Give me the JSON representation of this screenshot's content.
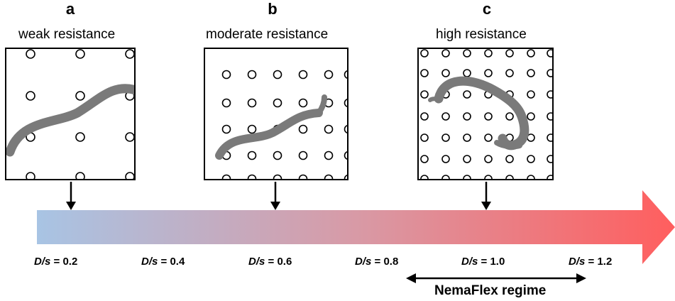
{
  "panels": [
    {
      "letter": "a",
      "title": "weak resistance"
    },
    {
      "letter": "b",
      "title": "moderate resistance"
    },
    {
      "letter": "c",
      "title": "high resistance"
    }
  ],
  "ds_ticks": [
    {
      "var": "D/s",
      "value": "= 0.2"
    },
    {
      "var": "D/s",
      "value": "= 0.4"
    },
    {
      "var": "D/s",
      "value": "= 0.6"
    },
    {
      "var": "D/s",
      "value": "= 0.8"
    },
    {
      "var": "D/s",
      "value": "= 1.0"
    },
    {
      "var": "D/s",
      "value": "= 1.2"
    }
  ],
  "regime_label": "NemaFlex regime",
  "colors": {
    "arrow_start": "#a8c4e4",
    "arrow_end": "#ff5e5e",
    "worm": "#7a7a7a"
  }
}
